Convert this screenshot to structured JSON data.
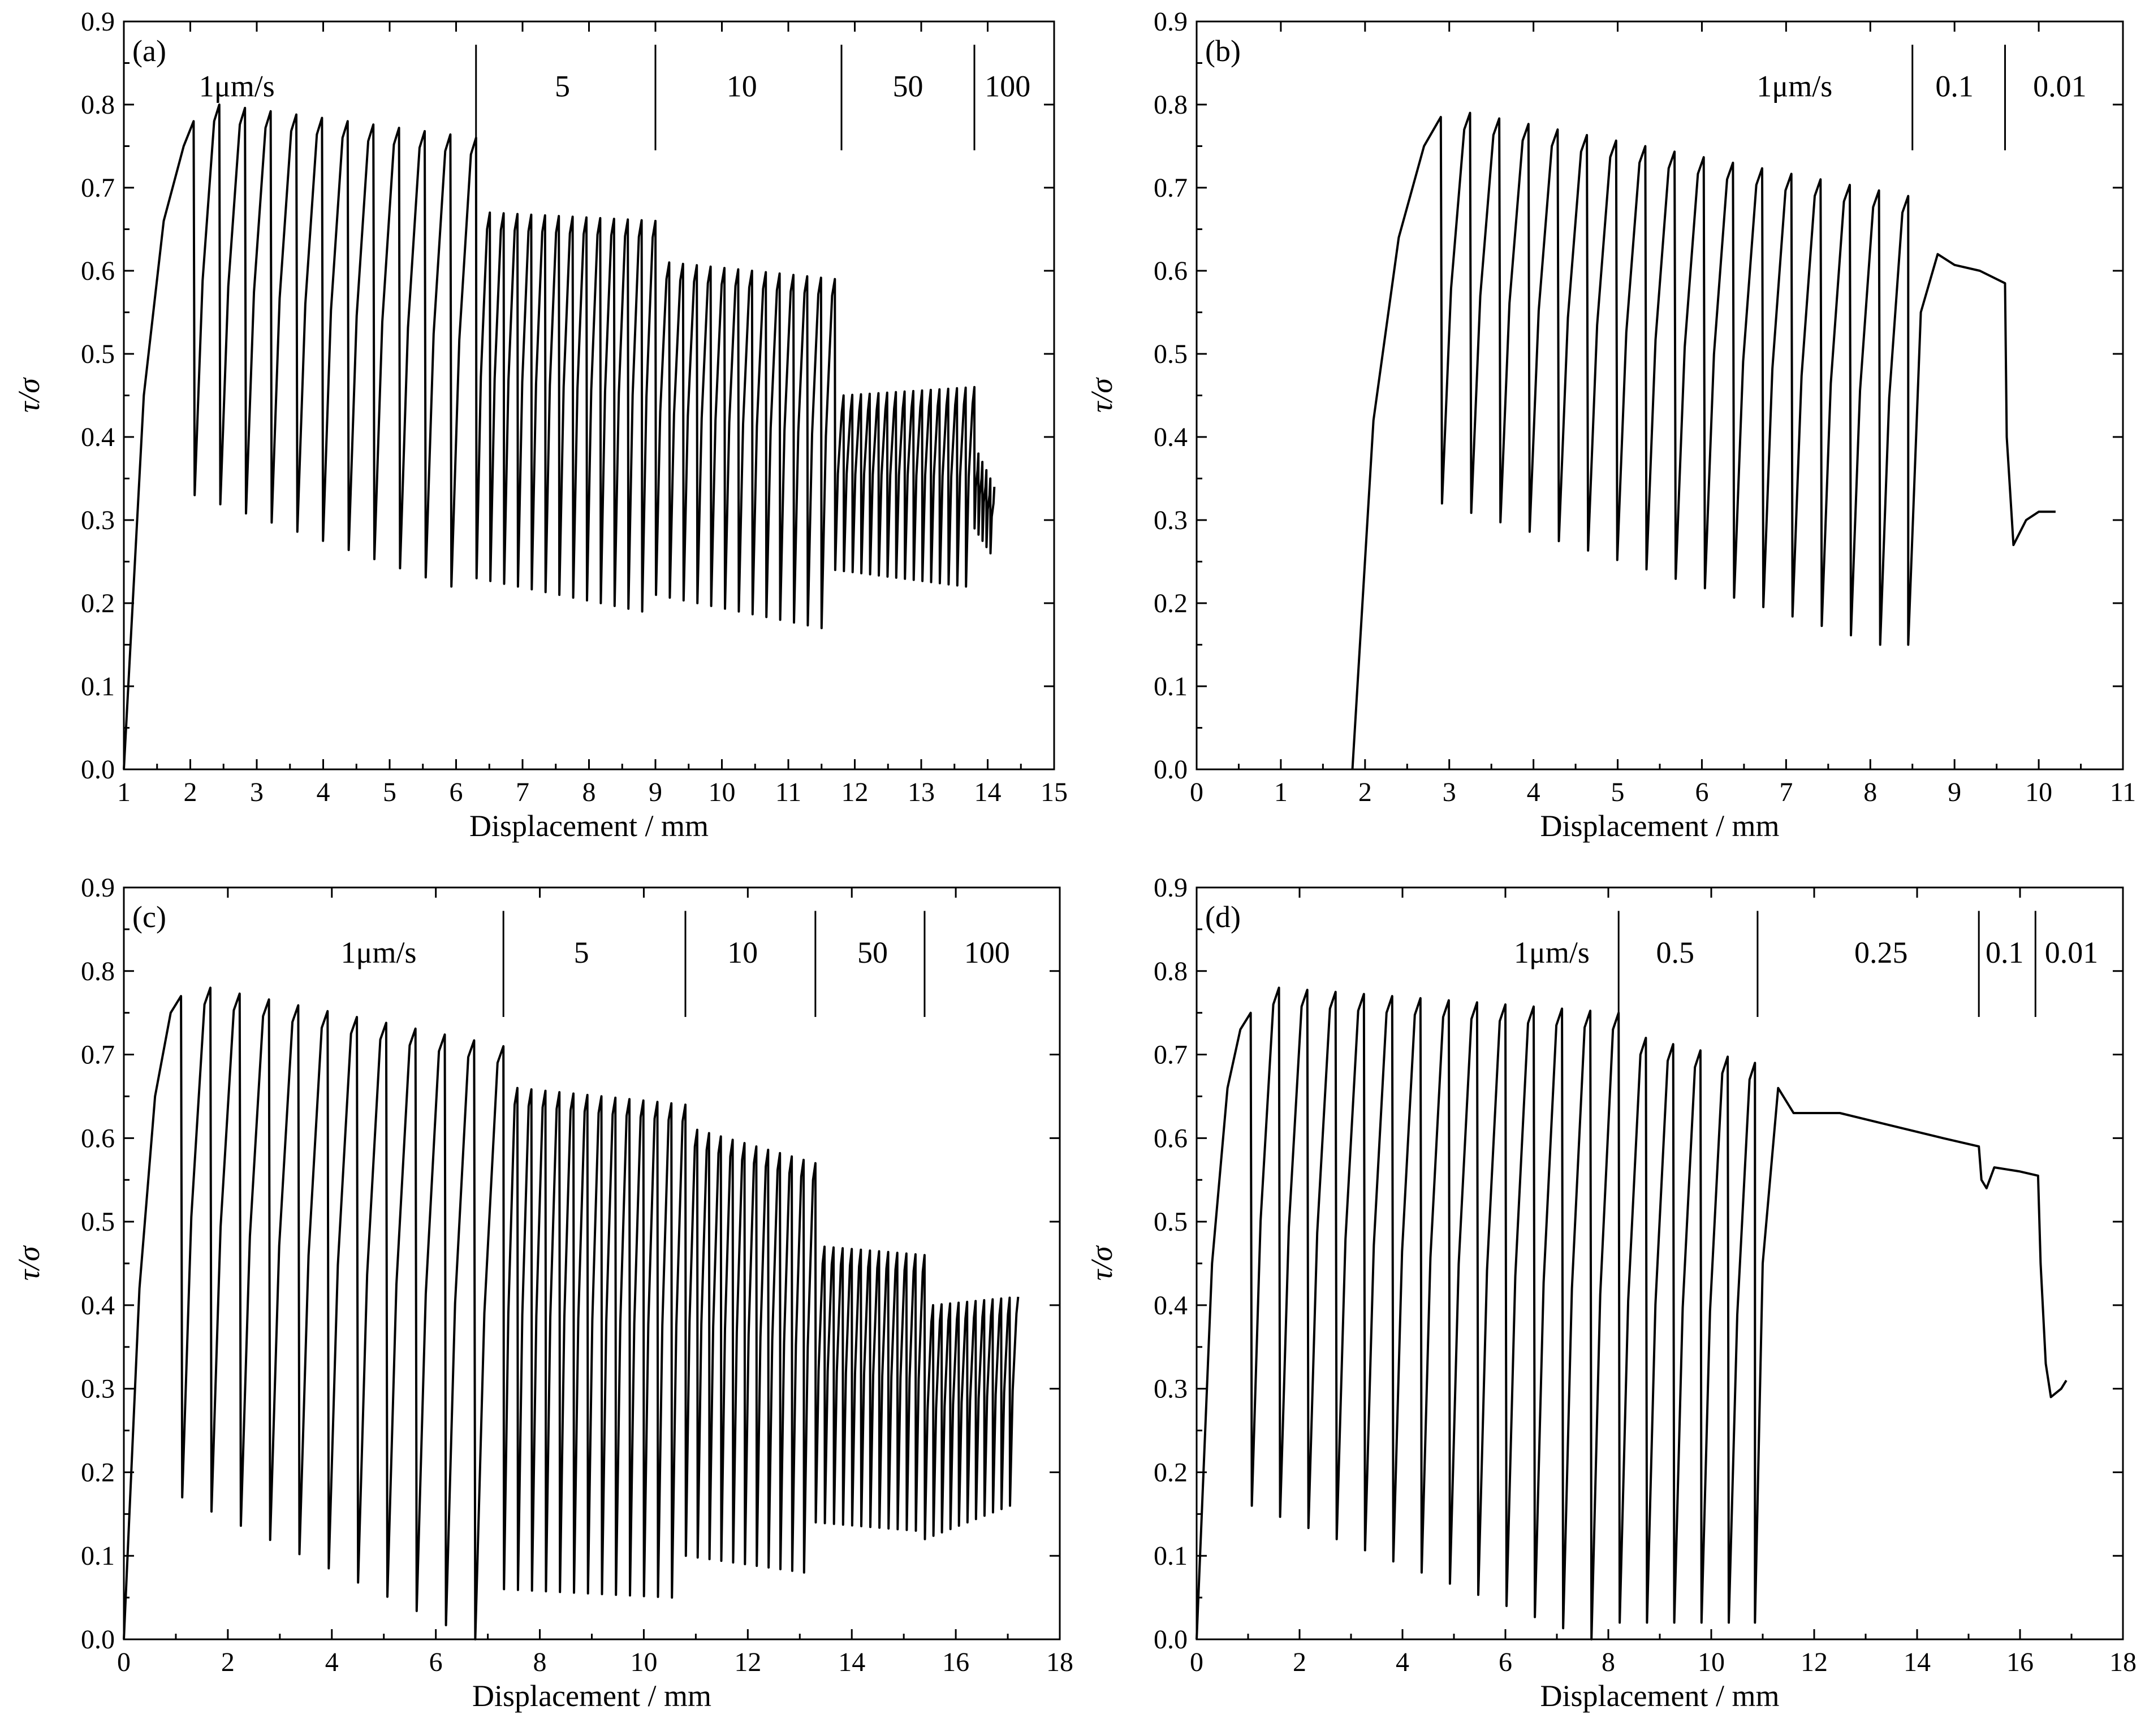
{
  "chart_data": [
    {
      "type": "line",
      "panel_label": "(a)",
      "xlabel": "Displacement / mm",
      "ylabel": "τ/σ",
      "xlim": [
        1,
        15
      ],
      "ylim": [
        0.0,
        0.9
      ],
      "xticks": [
        "1",
        "2",
        "3",
        "4",
        "5",
        "6",
        "7",
        "8",
        "9",
        "10",
        "11",
        "12",
        "13",
        "14",
        "15"
      ],
      "yticks": [
        "0.0",
        "0.1",
        "0.2",
        "0.3",
        "0.4",
        "0.5",
        "0.6",
        "0.7",
        "0.8",
        "0.9"
      ],
      "loading_rates": [
        {
          "label": "1μm/s",
          "x": 2.7
        },
        {
          "label": "5",
          "x": 7.6
        },
        {
          "label": "10",
          "x": 10.3
        },
        {
          "label": "50",
          "x": 12.8
        },
        {
          "label": "100",
          "x": 14.3
        }
      ],
      "rate_separators": [
        6.3,
        9.0,
        11.8,
        13.8
      ],
      "series": [
        {
          "initial_rise": [
            [
              1.0,
              0.0
            ],
            [
              1.3,
              0.45
            ],
            [
              1.6,
              0.66
            ],
            [
              1.9,
              0.75
            ],
            [
              2.05,
              0.78
            ]
          ],
          "stick_slip_segments": [
            {
              "x_start": 2.05,
              "x_end": 6.3,
              "count": 11,
              "peak_start": 0.8,
              "peak_end": 0.76,
              "trough_start": 0.33,
              "trough_end": 0.22
            },
            {
              "x_start": 6.3,
              "x_end": 9.0,
              "count": 13,
              "peak_start": 0.67,
              "peak_end": 0.66,
              "trough_start": 0.23,
              "trough_end": 0.19
            },
            {
              "x_start": 9.0,
              "x_end": 11.7,
              "count": 13,
              "peak_start": 0.61,
              "peak_end": 0.59,
              "trough_start": 0.21,
              "trough_end": 0.17
            },
            {
              "x_start": 11.7,
              "x_end": 13.8,
              "count": 16,
              "peak_start": 0.45,
              "peak_end": 0.46,
              "trough_start": 0.24,
              "trough_end": 0.22
            },
            {
              "x_start": 13.8,
              "x_end": 14.1,
              "count": 5,
              "peak_start": 0.38,
              "peak_end": 0.34,
              "trough_start": 0.29,
              "trough_end": 0.26
            }
          ]
        }
      ]
    },
    {
      "type": "line",
      "panel_label": "(b)",
      "xlabel": "Displacement / mm",
      "ylabel": "τ/σ",
      "xlim": [
        0,
        11
      ],
      "ylim": [
        0.0,
        0.9
      ],
      "xticks": [
        "0",
        "1",
        "2",
        "3",
        "4",
        "5",
        "6",
        "7",
        "8",
        "9",
        "10",
        "11"
      ],
      "yticks": [
        "0.0",
        "0.1",
        "0.2",
        "0.3",
        "0.4",
        "0.5",
        "0.6",
        "0.7",
        "0.8",
        "0.9"
      ],
      "loading_rates": [
        {
          "label": "1μm/s",
          "x": 7.1
        },
        {
          "label": "0.1",
          "x": 9.0
        },
        {
          "label": "0.01",
          "x": 10.25
        }
      ],
      "rate_separators": [
        8.5,
        9.6
      ],
      "series": [
        {
          "initial_rise": [
            [
              1.85,
              0.0
            ],
            [
              2.1,
              0.42
            ],
            [
              2.4,
              0.64
            ],
            [
              2.7,
              0.75
            ],
            [
              2.9,
              0.785
            ]
          ],
          "stick_slip_segments": [
            {
              "x_start": 2.9,
              "x_end": 8.45,
              "count": 16,
              "peak_start": 0.79,
              "peak_end": 0.69,
              "trough_start": 0.32,
              "trough_end": 0.15
            }
          ],
          "steady_segments": [
            [
              [
                8.45,
                0.15
              ],
              [
                8.6,
                0.55
              ],
              [
                8.8,
                0.62
              ],
              [
                9.0,
                0.607
              ],
              [
                9.3,
                0.6
              ],
              [
                9.6,
                0.585
              ],
              [
                9.62,
                0.4
              ],
              [
                9.7,
                0.27
              ],
              [
                9.85,
                0.3
              ],
              [
                10.0,
                0.31
              ],
              [
                10.2,
                0.31
              ]
            ]
          ]
        }
      ]
    },
    {
      "type": "line",
      "panel_label": "(c)",
      "xlabel": "Displacement / mm",
      "ylabel": "τ/σ",
      "xlim": [
        0,
        18
      ],
      "ylim": [
        0.0,
        0.9
      ],
      "xticks": [
        "0",
        "2",
        "4",
        "6",
        "8",
        "10",
        "12",
        "14",
        "16",
        "18"
      ],
      "yticks": [
        "0.0",
        "0.1",
        "0.2",
        "0.3",
        "0.4",
        "0.5",
        "0.6",
        "0.7",
        "0.8",
        "0.9"
      ],
      "loading_rates": [
        {
          "label": "1μm/s",
          "x": 4.9
        },
        {
          "label": "5",
          "x": 8.8
        },
        {
          "label": "10",
          "x": 11.9
        },
        {
          "label": "50",
          "x": 14.4
        },
        {
          "label": "100",
          "x": 16.6
        }
      ],
      "rate_separators": [
        7.3,
        10.8,
        13.3,
        15.4
      ],
      "series": [
        {
          "initial_rise": [
            [
              0.0,
              0.0
            ],
            [
              0.3,
              0.42
            ],
            [
              0.6,
              0.65
            ],
            [
              0.9,
              0.75
            ],
            [
              1.1,
              0.77
            ]
          ],
          "stick_slip_segments": [
            {
              "x_start": 1.1,
              "x_end": 7.3,
              "count": 11,
              "peak_start": 0.78,
              "peak_end": 0.71,
              "trough_start": 0.17,
              "trough_end": 0.0
            },
            {
              "x_start": 7.3,
              "x_end": 10.8,
              "count": 13,
              "peak_start": 0.66,
              "peak_end": 0.64,
              "trough_start": 0.06,
              "trough_end": 0.05
            },
            {
              "x_start": 10.8,
              "x_end": 13.3,
              "count": 11,
              "peak_start": 0.61,
              "peak_end": 0.57,
              "trough_start": 0.1,
              "trough_end": 0.08
            },
            {
              "x_start": 13.3,
              "x_end": 15.4,
              "count": 12,
              "peak_start": 0.47,
              "peak_end": 0.46,
              "trough_start": 0.14,
              "trough_end": 0.13
            },
            {
              "x_start": 15.4,
              "x_end": 17.2,
              "count": 11,
              "peak_start": 0.4,
              "peak_end": 0.41,
              "trough_start": 0.12,
              "trough_end": 0.16
            }
          ]
        }
      ]
    },
    {
      "type": "line",
      "panel_label": "(d)",
      "xlabel": "Displacement / mm",
      "ylabel": "τ/σ",
      "xlim": [
        0,
        18
      ],
      "ylim": [
        0.0,
        0.9
      ],
      "xticks": [
        "0",
        "2",
        "4",
        "6",
        "8",
        "10",
        "12",
        "14",
        "16",
        "18"
      ],
      "yticks": [
        "0.0",
        "0.1",
        "0.2",
        "0.3",
        "0.4",
        "0.5",
        "0.6",
        "0.7",
        "0.8",
        "0.9"
      ],
      "loading_rates": [
        {
          "label": "1μm/s",
          "x": 6.9
        },
        {
          "label": "0.5",
          "x": 9.3
        },
        {
          "label": "0.25",
          "x": 13.3
        },
        {
          "label": "0.1",
          "x": 15.7
        },
        {
          "label": "0.01",
          "x": 17.0
        }
      ],
      "rate_separators": [
        8.2,
        10.9,
        15.2,
        16.3
      ],
      "series": [
        {
          "initial_rise": [
            [
              0.0,
              0.0
            ],
            [
              0.3,
              0.45
            ],
            [
              0.6,
              0.66
            ],
            [
              0.85,
              0.73
            ],
            [
              1.05,
              0.75
            ]
          ],
          "stick_slip_segments": [
            {
              "x_start": 1.05,
              "x_end": 8.2,
              "count": 13,
              "peak_start": 0.78,
              "peak_end": 0.75,
              "trough_start": 0.16,
              "trough_end": 0.0
            },
            {
              "x_start": 8.2,
              "x_end": 10.85,
              "count": 5,
              "peak_start": 0.72,
              "peak_end": 0.69,
              "trough_start": 0.02,
              "trough_end": 0.02
            }
          ],
          "steady_segments": [
            [
              [
                10.85,
                0.02
              ],
              [
                11.0,
                0.45
              ],
              [
                11.3,
                0.66
              ],
              [
                11.6,
                0.63
              ],
              [
                12.5,
                0.63
              ],
              [
                13.5,
                0.615
              ],
              [
                14.5,
                0.6
              ],
              [
                15.2,
                0.59
              ],
              [
                15.25,
                0.55
              ],
              [
                15.35,
                0.54
              ],
              [
                15.5,
                0.565
              ],
              [
                16.0,
                0.56
              ],
              [
                16.35,
                0.555
              ],
              [
                16.4,
                0.45
              ],
              [
                16.5,
                0.33
              ],
              [
                16.6,
                0.29
              ],
              [
                16.8,
                0.3
              ],
              [
                16.9,
                0.31
              ]
            ]
          ]
        }
      ]
    }
  ]
}
